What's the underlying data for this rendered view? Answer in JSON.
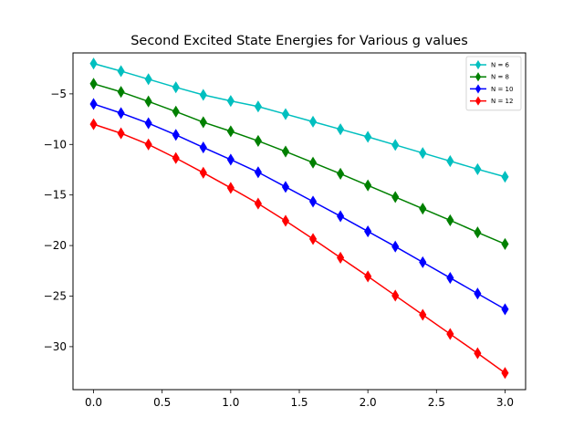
{
  "chart_data": {
    "type": "line",
    "title": "Second Excited State Energies for Various g values",
    "xlabel": "",
    "ylabel": "",
    "xlim": [
      -0.15,
      3.15
    ],
    "ylim": [
      -34.25,
      -0.95
    ],
    "xticks": [
      0.0,
      0.5,
      1.0,
      1.5,
      2.0,
      2.5,
      3.0
    ],
    "xtick_labels": [
      "0.0",
      "0.5",
      "1.0",
      "1.5",
      "2.0",
      "2.5",
      "3.0"
    ],
    "yticks": [
      -30,
      -25,
      -20,
      -15,
      -10,
      -5
    ],
    "ytick_labels": [
      "−30",
      "−25",
      "−20",
      "−15",
      "−10",
      "−5"
    ],
    "grid": false,
    "legend_position": "top-right",
    "x": [
      0.0,
      0.2,
      0.4,
      0.6,
      0.8,
      1.0,
      1.2,
      1.4,
      1.6,
      1.8,
      2.0,
      2.2,
      2.4,
      2.6,
      2.8,
      3.0
    ],
    "series": [
      {
        "name": "N = 6",
        "color": "#00bfbf",
        "marker": "thin-diamond",
        "values": [
          -2.0,
          -2.75,
          -3.55,
          -4.35,
          -5.1,
          -5.7,
          -6.25,
          -7.0,
          -7.75,
          -8.5,
          -9.25,
          -10.05,
          -10.85,
          -11.65,
          -12.45,
          -13.2
        ]
      },
      {
        "name": "N = 8",
        "color": "#008000",
        "marker": "thin-diamond",
        "values": [
          -4.0,
          -4.8,
          -5.75,
          -6.75,
          -7.8,
          -8.7,
          -9.65,
          -10.7,
          -11.8,
          -12.9,
          -14.05,
          -15.2,
          -16.35,
          -17.5,
          -18.7,
          -19.85
        ]
      },
      {
        "name": "N = 10",
        "color": "#0000ff",
        "marker": "thin-diamond",
        "values": [
          -6.0,
          -6.9,
          -7.9,
          -9.05,
          -10.3,
          -11.5,
          -12.75,
          -14.2,
          -15.65,
          -17.1,
          -18.6,
          -20.1,
          -21.65,
          -23.2,
          -24.75,
          -26.3
        ]
      },
      {
        "name": "N = 12",
        "color": "#ff0000",
        "marker": "thin-diamond",
        "values": [
          -8.0,
          -8.9,
          -10.0,
          -11.35,
          -12.8,
          -14.3,
          -15.85,
          -17.55,
          -19.35,
          -21.2,
          -23.05,
          -24.95,
          -26.85,
          -28.75,
          -30.65,
          -32.6
        ]
      }
    ]
  }
}
